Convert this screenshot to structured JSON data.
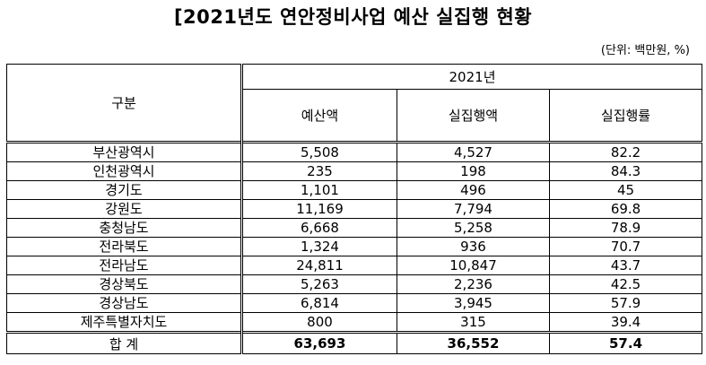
{
  "title": "[2021년도 연안정비사업 예산 실집행 현황",
  "unit_note": "(단위: 백만원, %)",
  "table": {
    "row_header": "구분",
    "year_header": "2021년",
    "columns": [
      "예산액",
      "실집행액",
      "실집행률"
    ],
    "rows": [
      {
        "region": "부산광역시",
        "budget": "5,508",
        "spent": "4,527",
        "rate": "82.2"
      },
      {
        "region": "인천광역시",
        "budget": "235",
        "spent": "198",
        "rate": "84.3"
      },
      {
        "region": "경기도",
        "budget": "1,101",
        "spent": "496",
        "rate": "45"
      },
      {
        "region": "강원도",
        "budget": "11,169",
        "spent": "7,794",
        "rate": "69.8"
      },
      {
        "region": "충청남도",
        "budget": "6,668",
        "spent": "5,258",
        "rate": "78.9"
      },
      {
        "region": "전라북도",
        "budget": "1,324",
        "spent": "936",
        "rate": "70.7"
      },
      {
        "region": "전라남도",
        "budget": "24,811",
        "spent": "10,847",
        "rate": "43.7"
      },
      {
        "region": "경상북도",
        "budget": "5,263",
        "spent": "2,236",
        "rate": "42.5"
      },
      {
        "region": "경상남도",
        "budget": "6,814",
        "spent": "3,945",
        "rate": "57.9"
      },
      {
        "region": "제주특별자치도",
        "budget": "800",
        "spent": "315",
        "rate": "39.4"
      }
    ],
    "total": {
      "label": "합 계",
      "budget": "63,693",
      "spent": "36,552",
      "rate": "57.4"
    }
  }
}
